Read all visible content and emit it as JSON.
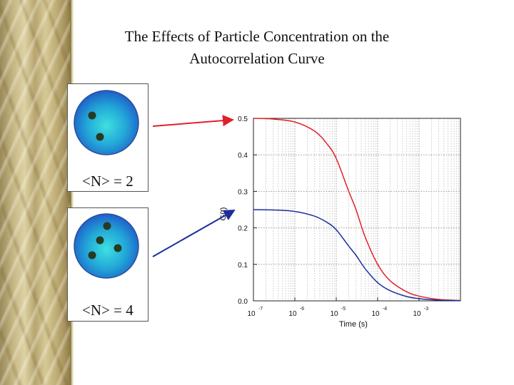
{
  "slide": {
    "title_line1": "The Effects of Particle Concentration on the",
    "title_line2": "Autocorrelation Curve"
  },
  "panels": [
    {
      "label": "<N> = 2",
      "particles": 2,
      "sphere_color": "#1e8fd0"
    },
    {
      "label": "<N> = 4",
      "particles": 4,
      "sphere_color": "#1e8fd0"
    }
  ],
  "chart_data": {
    "type": "line",
    "title": "",
    "xlabel": "Time (s)",
    "ylabel": "G(t)",
    "x_scale": "log",
    "xlim": [
      1e-07,
      0.01
    ],
    "ylim": [
      0,
      0.5
    ],
    "x_ticks": [
      {
        "base": "10",
        "exp": "-7"
      },
      {
        "base": "10",
        "exp": "-6"
      },
      {
        "base": "10",
        "exp": "-5"
      },
      {
        "base": "10",
        "exp": "-4"
      },
      {
        "base": "10",
        "exp": "-3"
      }
    ],
    "y_ticks": [
      "0.0",
      "0.1",
      "0.2",
      "0.3",
      "0.4",
      "0.5"
    ],
    "grid": true,
    "series": [
      {
        "color": "#e0202a",
        "x": [
          1e-07,
          3e-07,
          1e-06,
          3e-06,
          6e-06,
          1e-05,
          2e-05,
          3e-05,
          5e-05,
          0.0001,
          0.0002,
          0.0005,
          0.001,
          0.003,
          0.01
        ],
        "y": [
          0.5,
          0.498,
          0.49,
          0.465,
          0.43,
          0.39,
          0.3,
          0.25,
          0.175,
          0.1,
          0.055,
          0.025,
          0.013,
          0.004,
          0.001
        ]
      },
      {
        "color": "#1c2e9c",
        "x": [
          1e-07,
          3e-07,
          1e-06,
          3e-06,
          6e-06,
          1e-05,
          2e-05,
          3e-05,
          5e-05,
          0.0001,
          0.0002,
          0.0005,
          0.001,
          0.003,
          0.01
        ],
        "y": [
          0.25,
          0.249,
          0.245,
          0.232,
          0.215,
          0.195,
          0.15,
          0.125,
          0.088,
          0.05,
          0.028,
          0.012,
          0.006,
          0.002,
          0.0005
        ]
      }
    ],
    "arrows_color": {
      "red": "#e0202a",
      "blue": "#1c2e9c"
    }
  }
}
